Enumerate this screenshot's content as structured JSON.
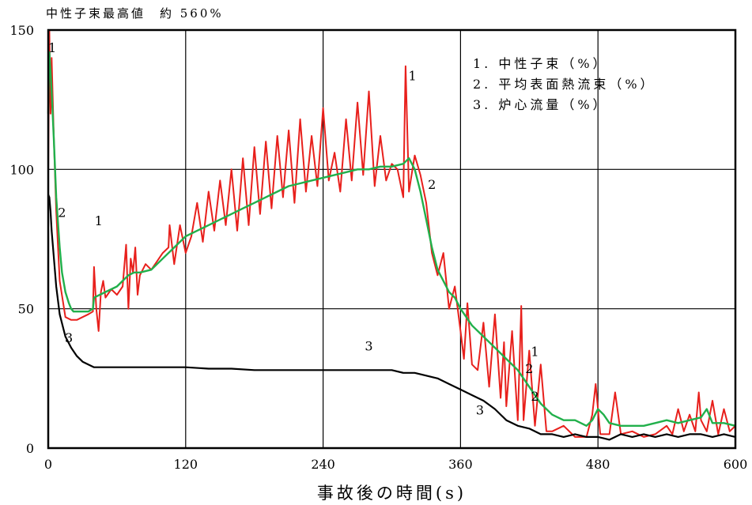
{
  "note": "中性子束最高値　約 560%",
  "chart_data": {
    "type": "line",
    "title": "",
    "xlabel": "事故後の時間(s)",
    "ylabel": "",
    "xlim": [
      0,
      600
    ],
    "ylim": [
      0,
      150
    ],
    "xticks": [
      "0",
      "120",
      "240",
      "360",
      "480",
      "600"
    ],
    "yticks": [
      "0",
      "50",
      "100",
      "150"
    ],
    "grid": true,
    "legend": {
      "position": "top-right",
      "entries": [
        "1.  中性子束（%）",
        "2.  平均表面熱流束（%）",
        "3.  炉心流量（%）"
      ]
    },
    "annotations": [
      "1",
      "1",
      "1",
      "1",
      "2",
      "2",
      "2",
      "2",
      "3",
      "3",
      "3"
    ],
    "colors": {
      "1": "#e8201c",
      "2": "#21b04b",
      "3": "#000000"
    },
    "series": [
      {
        "name": "1",
        "x": [
          0,
          1,
          2,
          3,
          5,
          7,
          10,
          15,
          20,
          25,
          30,
          35,
          39,
          40,
          42,
          44,
          46,
          48,
          50,
          55,
          60,
          65,
          68,
          70,
          72,
          74,
          76,
          78,
          80,
          85,
          90,
          95,
          100,
          105,
          106,
          110,
          115,
          120,
          125,
          130,
          135,
          140,
          145,
          150,
          155,
          160,
          165,
          170,
          175,
          180,
          185,
          190,
          195,
          200,
          205,
          210,
          215,
          220,
          225,
          230,
          235,
          240,
          245,
          250,
          255,
          260,
          265,
          270,
          275,
          280,
          285,
          290,
          295,
          300,
          305,
          310,
          312,
          315,
          318,
          320,
          325,
          330,
          335,
          340,
          345,
          350,
          355,
          360,
          363,
          366,
          370,
          375,
          380,
          385,
          390,
          395,
          398,
          400,
          405,
          410,
          413,
          415,
          420,
          425,
          430,
          435,
          440,
          450,
          460,
          470,
          475,
          478,
          482,
          490,
          495,
          500,
          510,
          520,
          530,
          540,
          545,
          550,
          555,
          560,
          565,
          568,
          570,
          575,
          580,
          585,
          590,
          595,
          600
        ],
        "values": [
          100,
          150,
          120,
          140,
          110,
          85,
          60,
          47,
          46,
          46,
          47,
          48,
          49,
          65,
          50,
          42,
          56,
          60,
          54,
          57,
          55,
          58,
          73,
          50,
          68,
          63,
          72,
          55,
          62,
          66,
          64,
          67,
          70,
          72,
          80,
          66,
          80,
          70,
          76,
          88,
          74,
          92,
          78,
          96,
          80,
          100,
          78,
          104,
          80,
          108,
          84,
          110,
          86,
          112,
          90,
          114,
          88,
          118,
          92,
          112,
          94,
          122,
          96,
          106,
          92,
          118,
          96,
          124,
          98,
          128,
          94,
          112,
          96,
          102,
          100,
          90,
          137,
          92,
          100,
          105,
          98,
          88,
          70,
          62,
          70,
          50,
          58,
          42,
          32,
          52,
          30,
          28,
          45,
          22,
          48,
          18,
          38,
          15,
          42,
          10,
          51,
          10,
          35,
          8,
          30,
          6,
          6,
          8,
          4,
          4,
          12,
          23,
          5,
          5,
          20,
          5,
          6,
          4,
          5,
          8,
          5,
          14,
          6,
          12,
          6,
          20,
          10,
          6,
          17,
          5,
          14,
          6,
          8
        ]
      },
      {
        "name": "2",
        "x": [
          0,
          1,
          2,
          3,
          5,
          7,
          10,
          12,
          15,
          18,
          20,
          22,
          25,
          30,
          35,
          39,
          40,
          45,
          50,
          55,
          60,
          65,
          70,
          75,
          80,
          90,
          100,
          110,
          120,
          130,
          140,
          150,
          160,
          170,
          180,
          190,
          200,
          210,
          220,
          230,
          240,
          250,
          260,
          270,
          280,
          290,
          300,
          310,
          315,
          320,
          325,
          330,
          335,
          340,
          345,
          350,
          355,
          360,
          370,
          380,
          390,
          400,
          410,
          420,
          430,
          440,
          450,
          460,
          470,
          475,
          480,
          485,
          490,
          500,
          510,
          520,
          530,
          540,
          550,
          560,
          570,
          575,
          580,
          590,
          600
        ],
        "values": [
          120,
          142,
          135,
          128,
          110,
          90,
          72,
          63,
          56,
          52,
          50,
          49,
          49,
          49,
          49,
          50,
          54,
          55,
          56,
          57,
          58,
          60,
          62,
          63,
          63,
          64,
          68,
          72,
          76,
          78,
          80,
          82,
          84,
          86,
          88,
          90,
          92,
          94,
          95,
          96,
          97,
          98,
          99,
          100,
          100,
          101,
          101,
          102,
          104,
          100,
          92,
          82,
          72,
          64,
          60,
          56,
          54,
          50,
          44,
          40,
          36,
          32,
          28,
          22,
          16,
          12,
          10,
          10,
          8,
          10,
          14,
          12,
          9,
          8,
          8,
          8,
          9,
          10,
          9,
          10,
          11,
          14,
          9,
          9,
          8
        ]
      },
      {
        "name": "3",
        "x": [
          0,
          1,
          2,
          3,
          5,
          7,
          10,
          15,
          20,
          25,
          30,
          35,
          40,
          50,
          60,
          80,
          100,
          120,
          140,
          160,
          180,
          200,
          220,
          240,
          260,
          280,
          300,
          310,
          320,
          330,
          340,
          350,
          360,
          370,
          380,
          390,
          400,
          410,
          420,
          430,
          440,
          450,
          460,
          470,
          480,
          490,
          500,
          510,
          520,
          530,
          540,
          550,
          560,
          570,
          580,
          590,
          600
        ],
        "values": [
          91,
          90,
          85,
          78,
          68,
          58,
          48,
          40,
          36,
          33,
          31,
          30,
          29,
          29,
          29,
          29,
          29,
          29,
          28.5,
          28.5,
          28,
          28,
          28,
          28,
          28,
          28,
          28,
          27,
          27,
          26,
          25,
          23,
          21,
          19,
          17,
          14,
          10,
          8,
          7,
          5,
          5,
          4,
          5,
          4,
          4,
          3,
          5,
          4,
          5,
          4,
          5,
          4,
          5,
          5,
          4,
          5,
          4
        ]
      }
    ]
  }
}
